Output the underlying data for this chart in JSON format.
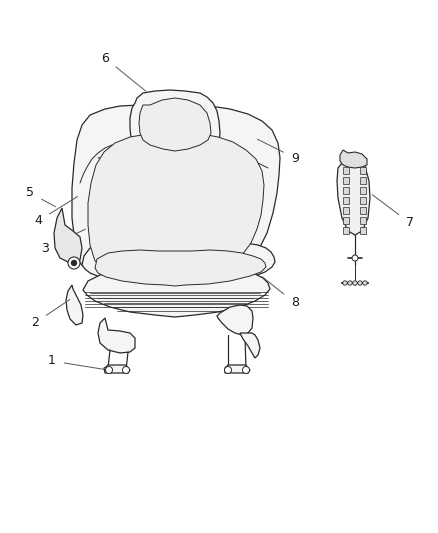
{
  "background_color": "#ffffff",
  "line_color": "#2a2a2a",
  "label_color": "#1a1a1a",
  "fig_width": 4.38,
  "fig_height": 5.33,
  "dpi": 100,
  "label_fontsize": 9,
  "seat_fill": "#f5f5f5",
  "seat_inner_fill": "#eeeeee",
  "line_width": 0.9
}
